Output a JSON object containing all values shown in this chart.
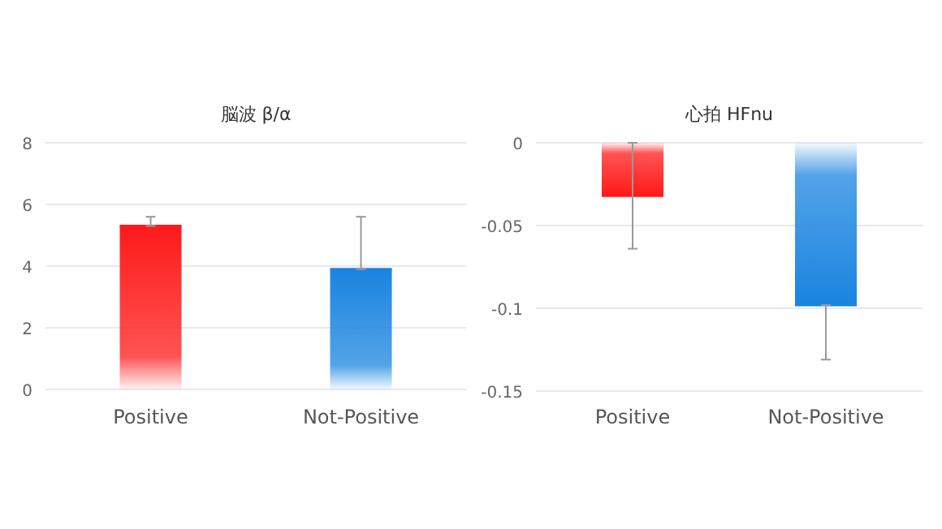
{
  "chart_data": [
    {
      "type": "bar",
      "title": "脳波  β/α",
      "categories": [
        "Positive",
        "Not-Positive"
      ],
      "values": [
        5.3,
        3.9
      ],
      "colors": [
        "#ff1a1a",
        "#1a84e0"
      ],
      "errors": [
        [
          5.3,
          5.6
        ],
        [
          3.9,
          5.6
        ]
      ],
      "ylim": [
        0,
        8
      ],
      "yticks": [
        0,
        2,
        4,
        6,
        8
      ],
      "grid": "y"
    },
    {
      "type": "bar",
      "title": "心拍  HFnu",
      "categories": [
        "Positive",
        "Not-Positive"
      ],
      "values": [
        -0.032,
        -0.098
      ],
      "colors": [
        "#ff1a1a",
        "#1a84e0"
      ],
      "errors": [
        0.032,
        [
          -0.131,
          -0.098
        ]
      ],
      "ylim": [
        -0.15,
        0
      ],
      "yticks": [
        {
          "value": -0.15,
          "label": "-0.15"
        },
        {
          "value": -0.1,
          "label": "-0.1"
        },
        {
          "value": -0.05,
          "label": "-0.05"
        },
        0
      ],
      "grid": "y"
    }
  ]
}
